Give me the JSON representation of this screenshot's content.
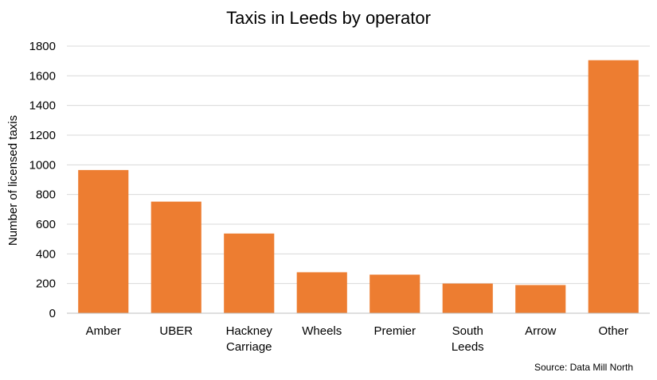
{
  "chart_data": {
    "type": "bar",
    "title": "Taxis in Leeds by operator",
    "xlabel": "",
    "ylabel": "Number of licensed taxis",
    "categories": [
      [
        "Amber"
      ],
      [
        "UBER"
      ],
      [
        "Hackney",
        "Carriage"
      ],
      [
        "Wheels"
      ],
      [
        "Premier"
      ],
      [
        "South",
        "Leeds"
      ],
      [
        "Arrow"
      ],
      [
        "Other"
      ]
    ],
    "values": [
      965,
      752,
      537,
      276,
      260,
      200,
      190,
      1705
    ],
    "ylim": [
      0,
      1800
    ],
    "yticks": [
      0,
      200,
      400,
      600,
      800,
      1000,
      1200,
      1400,
      1600,
      1800
    ],
    "grid": true,
    "legend": "none",
    "bar_color": "#ed7d31",
    "source": "Source: Data Mill North"
  }
}
